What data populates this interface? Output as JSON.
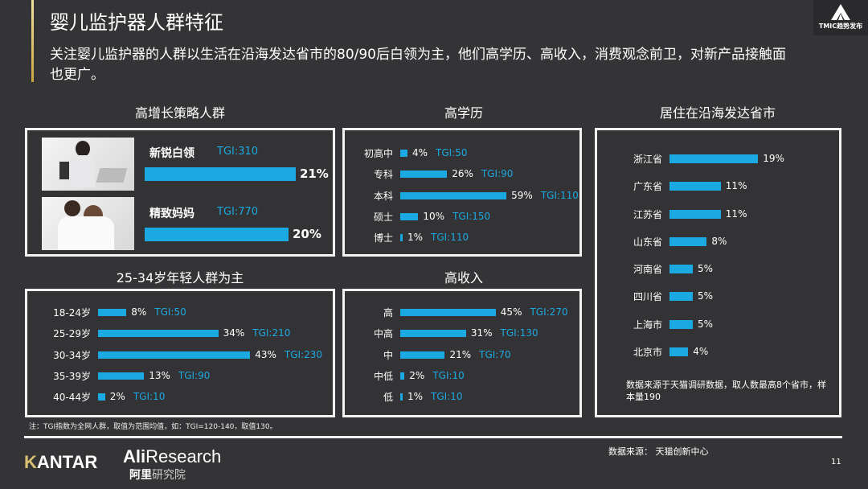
{
  "header": {
    "title": "婴儿监护器人群特征",
    "subtitle": "关注婴儿监护器的人群以生活在沿海发达省市的80/90后白领为主，他们高学历、高收入，消费观念前卫，对新产品接触面也更广。",
    "logo_text": "TMIC趋势发布"
  },
  "colors": {
    "bar": "#1ba9e1",
    "background": "#343436",
    "border": "#f2f2f2"
  },
  "segments": {
    "title": "高增长策略人群",
    "items": [
      {
        "name": "新锐白领",
        "tgi": "TGI:310",
        "value": 21,
        "label": "21%"
      },
      {
        "name": "精致妈妈",
        "tgi": "TGI:770",
        "value": 20,
        "label": "20%"
      }
    ]
  },
  "education": {
    "title": "高学历",
    "items": [
      {
        "label": "初高中",
        "value": 4,
        "value_label": "4%",
        "tgi": "TGI:50"
      },
      {
        "label": "专科",
        "value": 26,
        "value_label": "26%",
        "tgi": "TGI:90"
      },
      {
        "label": "本科",
        "value": 59,
        "value_label": "59%",
        "tgi": "TGI:110"
      },
      {
        "label": "硕士",
        "value": 10,
        "value_label": "10%",
        "tgi": "TGI:150"
      },
      {
        "label": "博士",
        "value": 1,
        "value_label": "1%",
        "tgi": "TGI:110"
      }
    ]
  },
  "region": {
    "title": "居住在沿海发达省市",
    "items": [
      {
        "label": "浙江省",
        "value": 19,
        "value_label": "19%"
      },
      {
        "label": "广东省",
        "value": 11,
        "value_label": "11%"
      },
      {
        "label": "江苏省",
        "value": 11,
        "value_label": "11%"
      },
      {
        "label": "山东省",
        "value": 8,
        "value_label": "8%"
      },
      {
        "label": "河南省",
        "value": 5,
        "value_label": "5%"
      },
      {
        "label": "四川省",
        "value": 5,
        "value_label": "5%"
      },
      {
        "label": "上海市",
        "value": 5,
        "value_label": "5%"
      },
      {
        "label": "北京市",
        "value": 4,
        "value_label": "4%"
      }
    ],
    "note": "数据来源于天猫调研数据，取人数最高8个省市，样本量190"
  },
  "age": {
    "title": "25-34岁年轻人群为主",
    "items": [
      {
        "label": "18-24岁",
        "value": 8,
        "value_label": "8%",
        "tgi": "TGI:50"
      },
      {
        "label": "25-29岁",
        "value": 34,
        "value_label": "34%",
        "tgi": "TGI:210"
      },
      {
        "label": "30-34岁",
        "value": 43,
        "value_label": "43%",
        "tgi": "TGI:230"
      },
      {
        "label": "35-39岁",
        "value": 13,
        "value_label": "13%",
        "tgi": "TGI:90"
      },
      {
        "label": "40-44岁",
        "value": 2,
        "value_label": "2%",
        "tgi": "TGI:10"
      }
    ]
  },
  "income": {
    "title": "高收入",
    "items": [
      {
        "label": "高",
        "value": 45,
        "value_label": "45%",
        "tgi": "TGI:270"
      },
      {
        "label": "中高",
        "value": 31,
        "value_label": "31%",
        "tgi": "TGI:130"
      },
      {
        "label": "中",
        "value": 21,
        "value_label": "21%",
        "tgi": "TGI:70"
      },
      {
        "label": "中低",
        "value": 2,
        "value_label": "2%",
        "tgi": "TGI:10"
      },
      {
        "label": "低",
        "value": 1,
        "value_label": "1%",
        "tgi": "TGI:10"
      }
    ]
  },
  "footer": {
    "note": "注：TGI指数为全网人群，取值为范围均值，如：TGI=120-140，取值130。",
    "source": "数据来源：  天猫创新中心",
    "page": "11",
    "logo_kantar": "KANTAR",
    "logo_ali_en": "AliResearch",
    "logo_ali_cn": "阿里研究院"
  }
}
